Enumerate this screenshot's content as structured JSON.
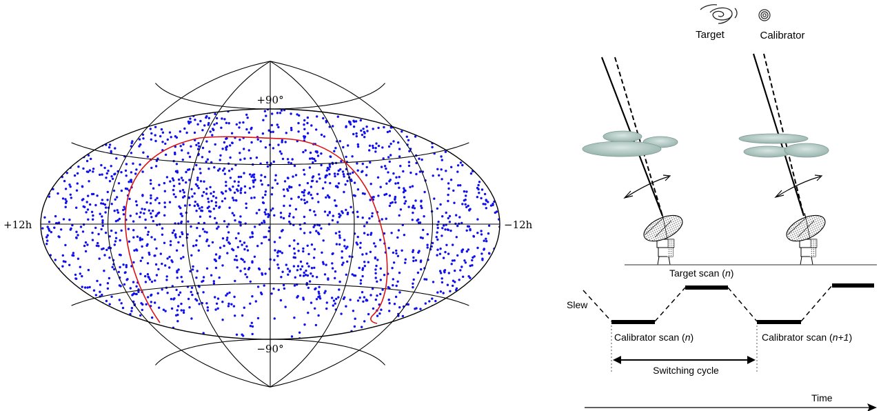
{
  "sky_map": {
    "label_top": "+90°",
    "label_bottom": "−90°",
    "label_left": "+12h",
    "label_right": "−12h",
    "colors": {
      "points": "#1111ee",
      "curve": "#dd1111",
      "grid": "#000000"
    }
  },
  "diagram": {
    "target_label": "Target",
    "calibrator_label": "Calibrator",
    "target_scan_label": "Target scan (",
    "target_scan_n": "n",
    "target_scan_close": ")",
    "slew_label": "Slew",
    "calibrator_scan_label": "Calibrator scan (",
    "calibrator_scan_n": "n",
    "calibrator_scan_close": ")",
    "calibrator_scan_next_label": "Calibrator scan (",
    "calibrator_scan_next_n": "n+1",
    "calibrator_scan_next_close": ")",
    "switching_cycle_label": "Switching cycle",
    "time_label": "Time",
    "colors": {
      "cloud": "#a9c2bc",
      "cloud_edge": "#7e9a94"
    }
  }
}
